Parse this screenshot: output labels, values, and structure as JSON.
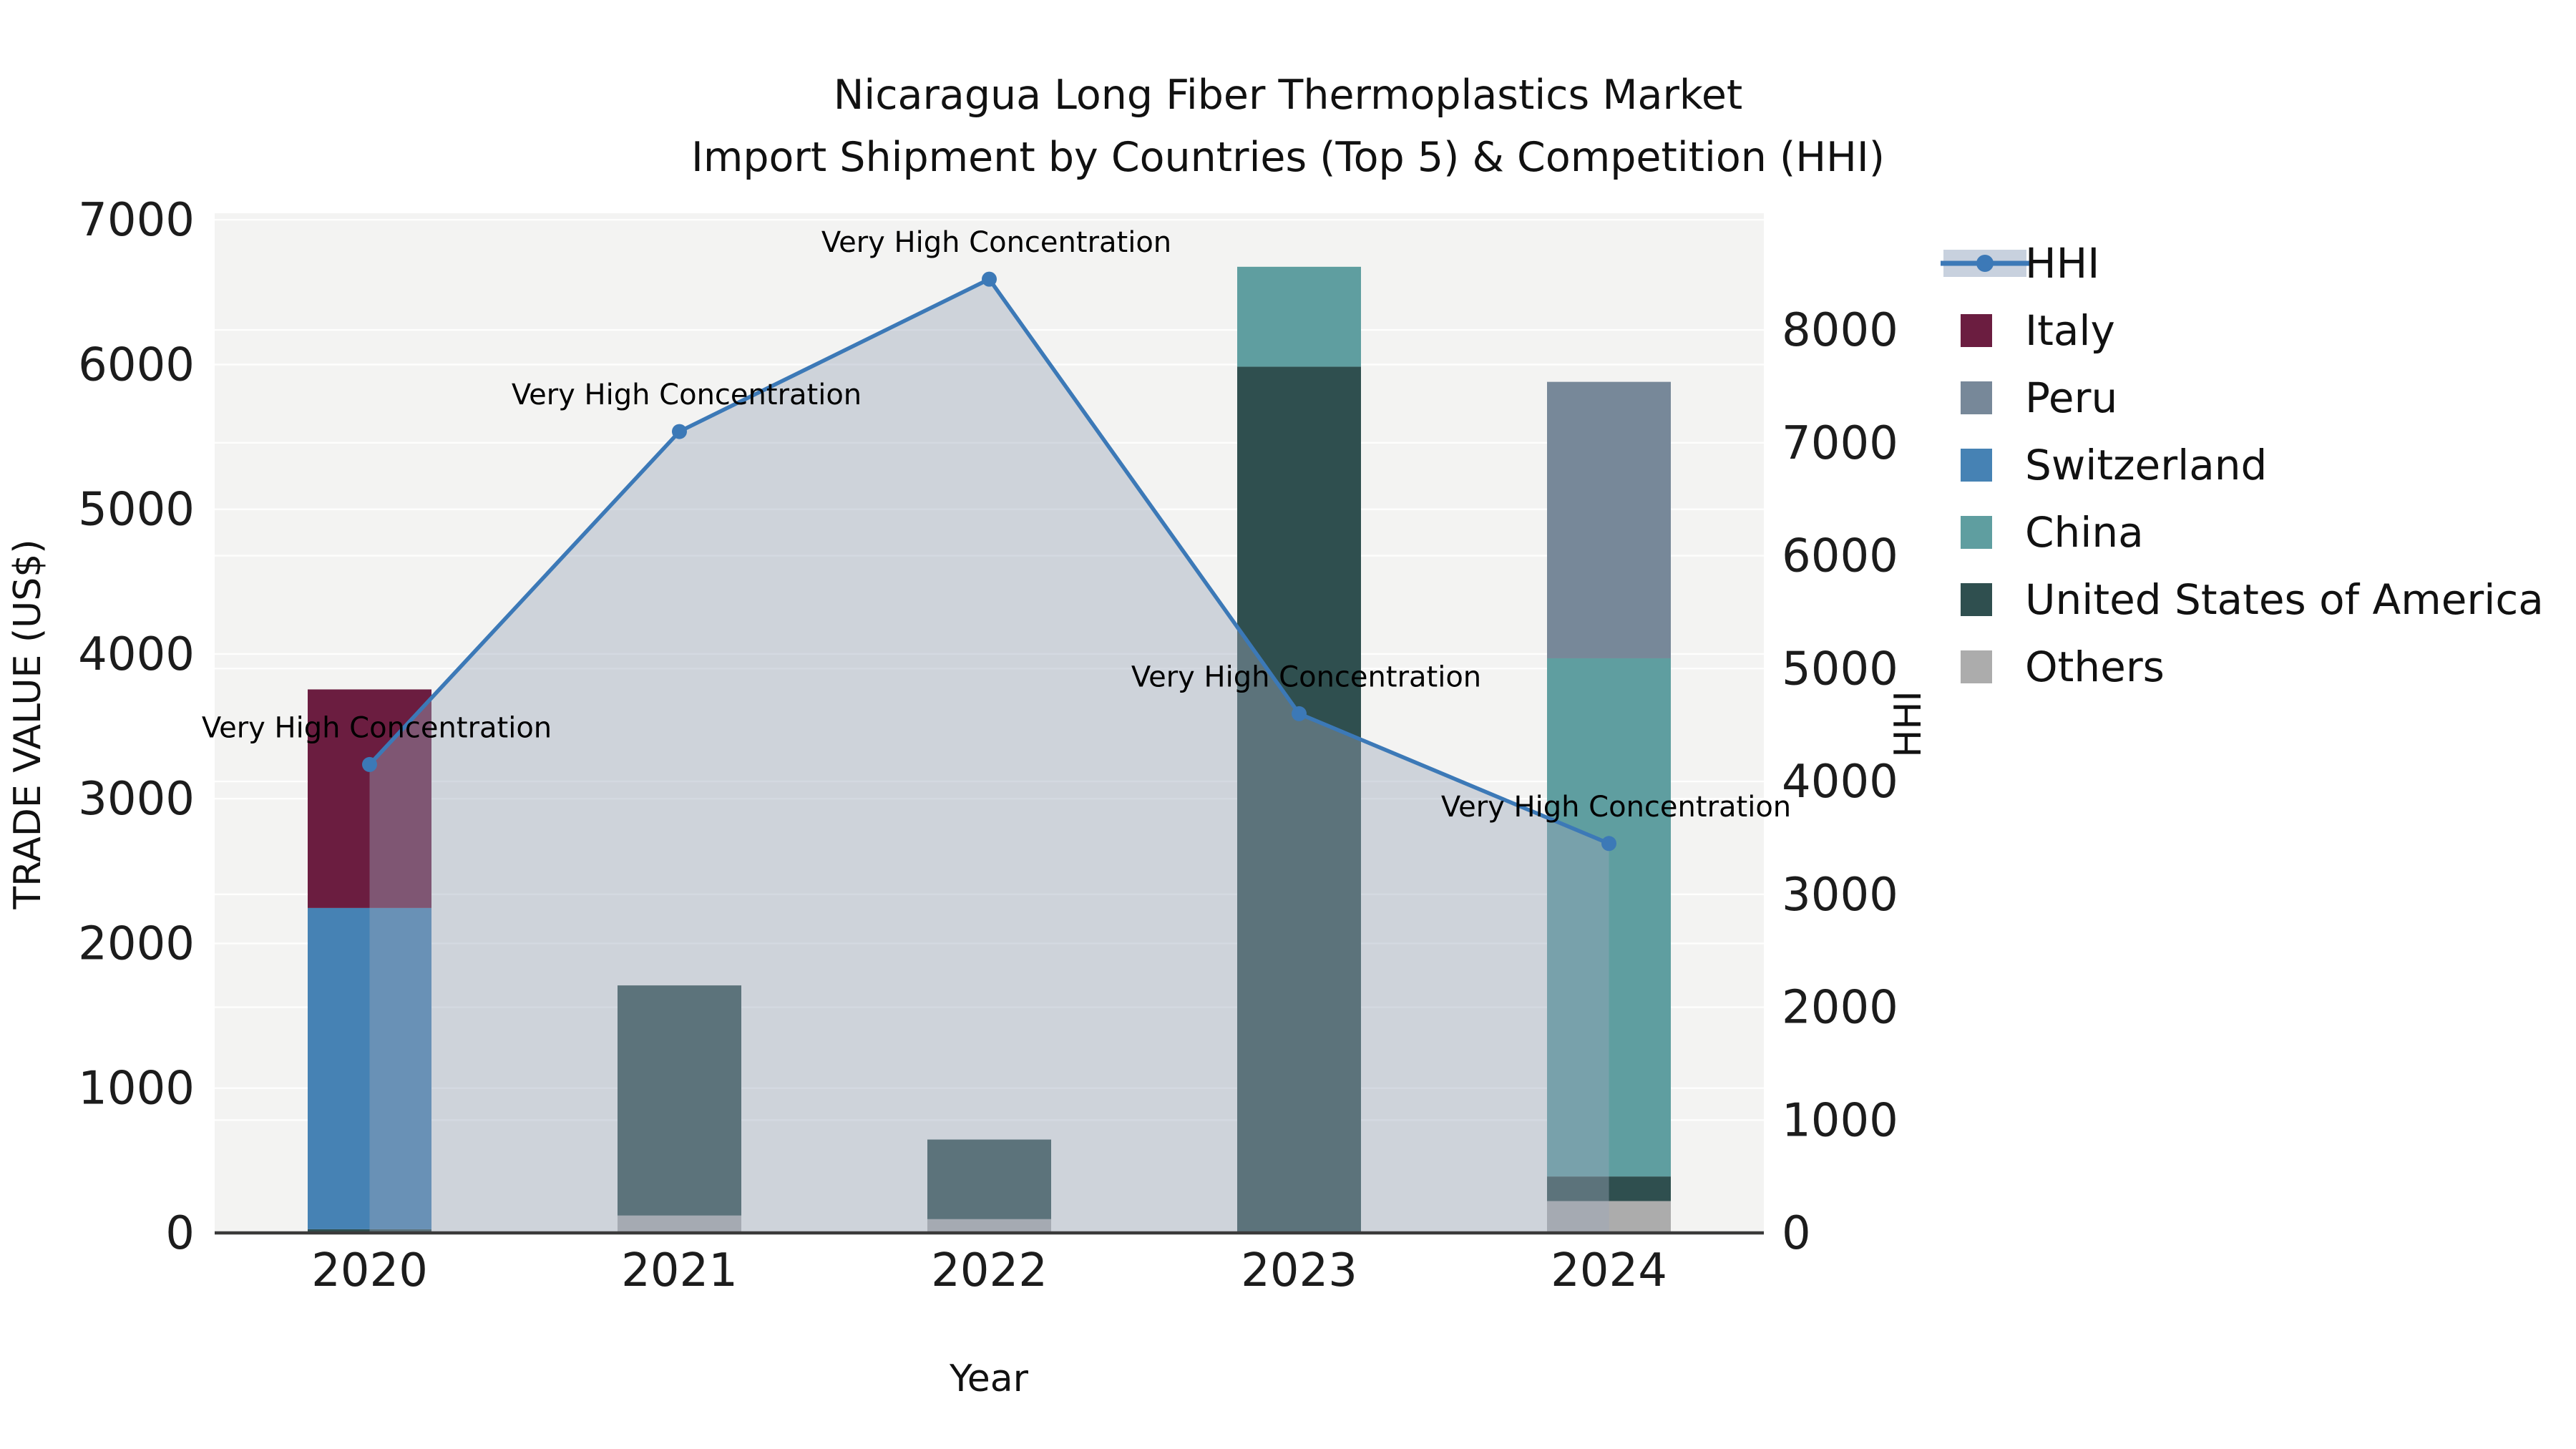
{
  "title": {
    "line1": "Nicaragua Long Fiber Thermoplastics Market",
    "line2": "Import Shipment by Countries (Top 5) & Competition (HHI)"
  },
  "axes": {
    "x": {
      "label": "Year",
      "categories": [
        "2020",
        "2021",
        "2022",
        "2023",
        "2024"
      ]
    },
    "y_left": {
      "label": "TRADE VALUE (US$)",
      "ticks": [
        0,
        1000,
        2000,
        3000,
        4000,
        5000,
        6000,
        7000
      ]
    },
    "y_right": {
      "label": "HHI",
      "ticks": [
        0,
        1000,
        2000,
        3000,
        4000,
        5000,
        6000,
        7000,
        8000
      ]
    }
  },
  "legend": {
    "position": "right-outside",
    "entries": [
      {
        "label": "HHI",
        "kind": "line-marker-band",
        "color": "#3C79B7",
        "band": "#C8D1DE"
      },
      {
        "label": "Italy",
        "kind": "swatch",
        "color": "#6B1D40"
      },
      {
        "label": "Peru",
        "kind": "swatch",
        "color": "#778899"
      },
      {
        "label": "Switzerland",
        "kind": "swatch",
        "color": "#4682B4"
      },
      {
        "label": "China",
        "kind": "swatch",
        "color": "#5F9EA0"
      },
      {
        "label": "United States of America",
        "kind": "swatch",
        "color": "#2F4F4F"
      },
      {
        "label": "Others",
        "kind": "swatch",
        "color": "#ACACAC"
      }
    ]
  },
  "chart_data": {
    "type": "bar+line",
    "title": "Nicaragua Long Fiber Thermoplastics Market\nImport Shipment by Countries (Top 5) & Competition (HHI)",
    "xlabel": "Year",
    "ylabel_left": "TRADE VALUE (US$)",
    "ylabel_right": "HHI",
    "categories": [
      "2020",
      "2021",
      "2022",
      "2023",
      "2024"
    ],
    "grid": true,
    "ylim_left": [
      0,
      7045
    ],
    "ylim_right": [
      0,
      9034
    ],
    "colors": {
      "Italy": "#6B1D40",
      "Peru": "#778899",
      "Switzerland": "#4682B4",
      "China": "#5F9EA0",
      "United States of America": "#2F4F4F",
      "Others": "#ACACAC"
    },
    "series": [
      {
        "name": "Italy",
        "values": [
          1510,
          0,
          0,
          0,
          0
        ]
      },
      {
        "name": "Peru",
        "values": [
          0,
          0,
          0,
          0,
          1910
        ]
      },
      {
        "name": "Switzerland",
        "values": [
          2220,
          0,
          0,
          0,
          0
        ]
      },
      {
        "name": "China",
        "values": [
          0,
          0,
          0,
          690,
          3580
        ]
      },
      {
        "name": "United States of America",
        "values": [
          25,
          1590,
          550,
          5985,
          170
        ]
      },
      {
        "name": "Others",
        "values": [
          0,
          120,
          95,
          0,
          220
        ]
      }
    ],
    "bars_stacked_bottom_to_top": [
      {
        "category": "2020",
        "segments": [
          {
            "name": "United States of America",
            "value": 25
          },
          {
            "name": "Switzerland",
            "value": 2220
          },
          {
            "name": "Italy",
            "value": 1510
          }
        ]
      },
      {
        "category": "2021",
        "segments": [
          {
            "name": "Others",
            "value": 120
          },
          {
            "name": "United States of America",
            "value": 1590
          }
        ]
      },
      {
        "category": "2022",
        "segments": [
          {
            "name": "Others",
            "value": 95
          },
          {
            "name": "United States of America",
            "value": 550
          }
        ]
      },
      {
        "category": "2023",
        "segments": [
          {
            "name": "United States of America",
            "value": 5985
          },
          {
            "name": "China",
            "value": 690
          }
        ]
      },
      {
        "category": "2024",
        "segments": [
          {
            "name": "Others",
            "value": 220
          },
          {
            "name": "United States of America",
            "value": 170
          },
          {
            "name": "China",
            "value": 3580
          },
          {
            "name": "Peru",
            "value": 1910
          }
        ]
      }
    ],
    "hhi_line": {
      "name": "HHI",
      "values": [
        4150,
        7100,
        8450,
        4600,
        3450
      ],
      "color": "#3C79B7",
      "area_fill": "#9AA8BB",
      "area_alpha": 0.42,
      "annotations": [
        "Very High Concentration",
        "Very High Concentration",
        "Very High Concentration",
        "Very High Concentration",
        "Very High Concentration"
      ]
    },
    "plot_background": "#F3F3F2",
    "gridline_color": "#FFFFFF",
    "spine_color": "#3A3A3A"
  }
}
